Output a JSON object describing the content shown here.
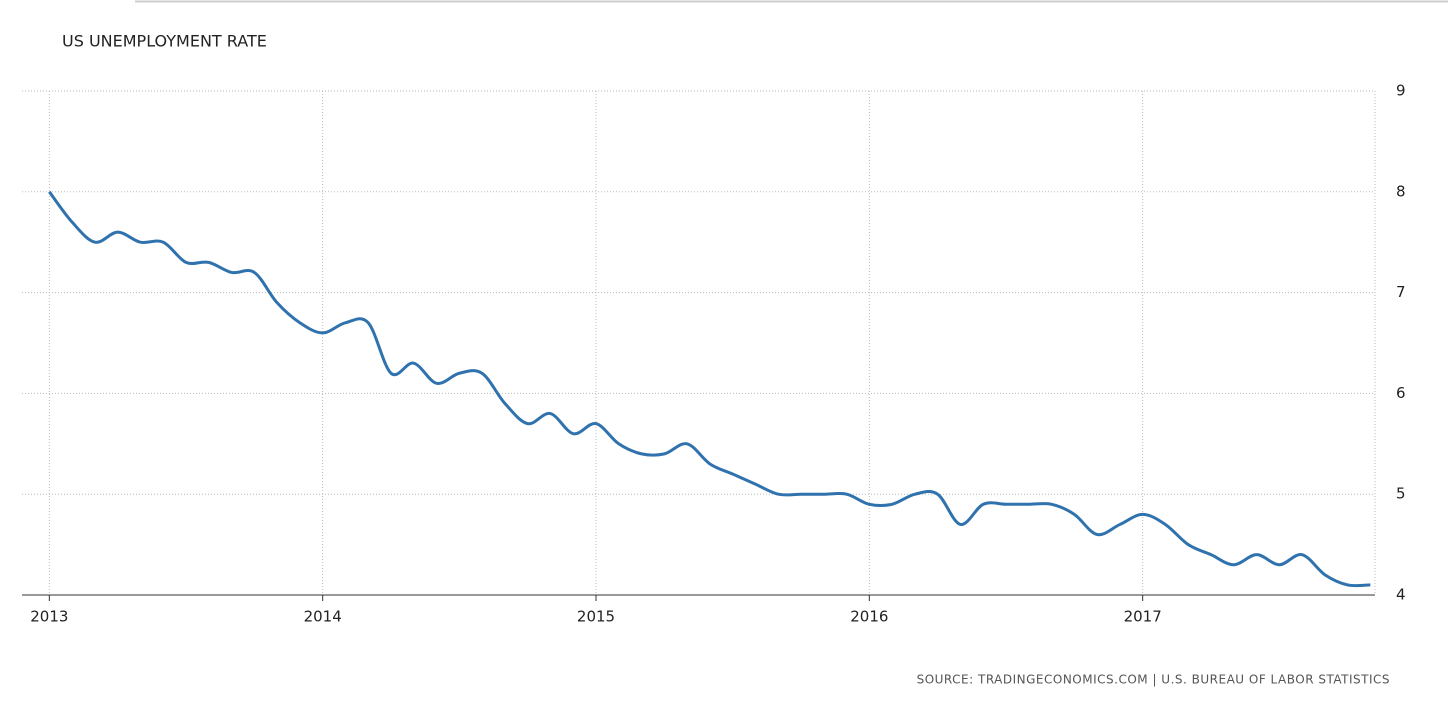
{
  "chart_data": {
    "type": "line",
    "title": "US UNEMPLOYMENT RATE",
    "source": "SOURCE: TRADINGECONOMICS.COM | U.S. BUREAU OF LABOR STATISTICS",
    "x": [
      2013,
      2013.083,
      2013.167,
      2013.25,
      2013.333,
      2013.417,
      2013.5,
      2013.583,
      2013.667,
      2013.75,
      2013.833,
      2013.917,
      2014,
      2014.083,
      2014.167,
      2014.25,
      2014.333,
      2014.417,
      2014.5,
      2014.583,
      2014.667,
      2014.75,
      2014.833,
      2014.917,
      2015,
      2015.083,
      2015.167,
      2015.25,
      2015.333,
      2015.417,
      2015.5,
      2015.583,
      2015.667,
      2015.75,
      2015.833,
      2015.917,
      2016,
      2016.083,
      2016.167,
      2016.25,
      2016.333,
      2016.417,
      2016.5,
      2016.583,
      2016.667,
      2016.75,
      2016.833,
      2016.917,
      2017,
      2017.083,
      2017.167,
      2017.25,
      2017.333,
      2017.417,
      2017.5,
      2017.583,
      2017.667,
      2017.75,
      2017.833
    ],
    "series": [
      {
        "name": "US Unemployment Rate",
        "color": "#2f72ad",
        "values": [
          8.0,
          7.7,
          7.5,
          7.6,
          7.5,
          7.5,
          7.3,
          7.3,
          7.2,
          7.2,
          6.9,
          6.7,
          6.6,
          6.7,
          6.7,
          6.2,
          6.3,
          6.1,
          6.2,
          6.2,
          5.9,
          5.7,
          5.8,
          5.6,
          5.7,
          5.5,
          5.4,
          5.4,
          5.5,
          5.3,
          5.2,
          5.1,
          5.0,
          5.0,
          5.0,
          5.0,
          4.9,
          4.9,
          5.0,
          5.0,
          4.7,
          4.9,
          4.9,
          4.9,
          4.9,
          4.8,
          4.6,
          4.7,
          4.8,
          4.7,
          4.5,
          4.4,
          4.3,
          4.4,
          4.3,
          4.4,
          4.2,
          4.1,
          4.1
        ]
      }
    ],
    "xlim": [
      2012.9,
      2017.85
    ],
    "xticks": [
      2013,
      2014,
      2015,
      2016,
      2017
    ],
    "ylim": [
      4,
      9
    ],
    "yticks": [
      4,
      5,
      6,
      7,
      8,
      9
    ],
    "grid": true
  }
}
